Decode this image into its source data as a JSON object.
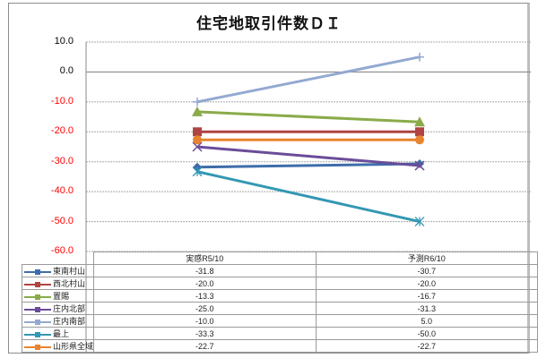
{
  "chart_data": {
    "type": "line",
    "title": "住宅地取引件数ＤＩ",
    "xlabel": "",
    "ylabel": "",
    "categories": [
      "実感R5/10",
      "予測R6/10"
    ],
    "ylim": [
      -60,
      10
    ],
    "yticks": [
      "10.0",
      "0.0",
      "-10.0",
      "-20.0",
      "-30.0",
      "-40.0",
      "-50.0",
      "-60.0"
    ],
    "ytick_colors": {
      "nonnegative": "#000000",
      "negative": "#ff0000"
    },
    "grid": true,
    "legend_position": "data-table",
    "series": [
      {
        "name": "東南村山",
        "values": [
          -31.8,
          -30.7
        ],
        "display": [
          "-31.8",
          "-30.7"
        ],
        "color": "#3E6DAA",
        "marker": "diamond"
      },
      {
        "name": "西北村山",
        "values": [
          -20.0,
          -20.0
        ],
        "display": [
          "-20.0",
          "-20.0"
        ],
        "color": "#B04442",
        "marker": "square"
      },
      {
        "name": "置賜",
        "values": [
          -13.3,
          -16.7
        ],
        "display": [
          "-13.3",
          "-16.7"
        ],
        "color": "#8AAB4A",
        "marker": "triangle"
      },
      {
        "name": "庄内北部",
        "values": [
          -25.0,
          -31.3
        ],
        "display": [
          "-25.0",
          "-31.3"
        ],
        "color": "#6B4C9A",
        "marker": "x"
      },
      {
        "name": "庄内南部",
        "values": [
          -10.0,
          5.0
        ],
        "display": [
          "-10.0",
          "5.0"
        ],
        "color": "#93A9D2",
        "marker": "plus"
      },
      {
        "name": "最上",
        "values": [
          -33.3,
          -50.0
        ],
        "display": [
          "-33.3",
          "-50.0"
        ],
        "color": "#3398B3",
        "marker": "star"
      },
      {
        "name": "山形県全域",
        "values": [
          -22.7,
          -22.7
        ],
        "display": [
          "-22.7",
          "-22.7"
        ],
        "color": "#E8842F",
        "marker": "circle"
      }
    ]
  }
}
